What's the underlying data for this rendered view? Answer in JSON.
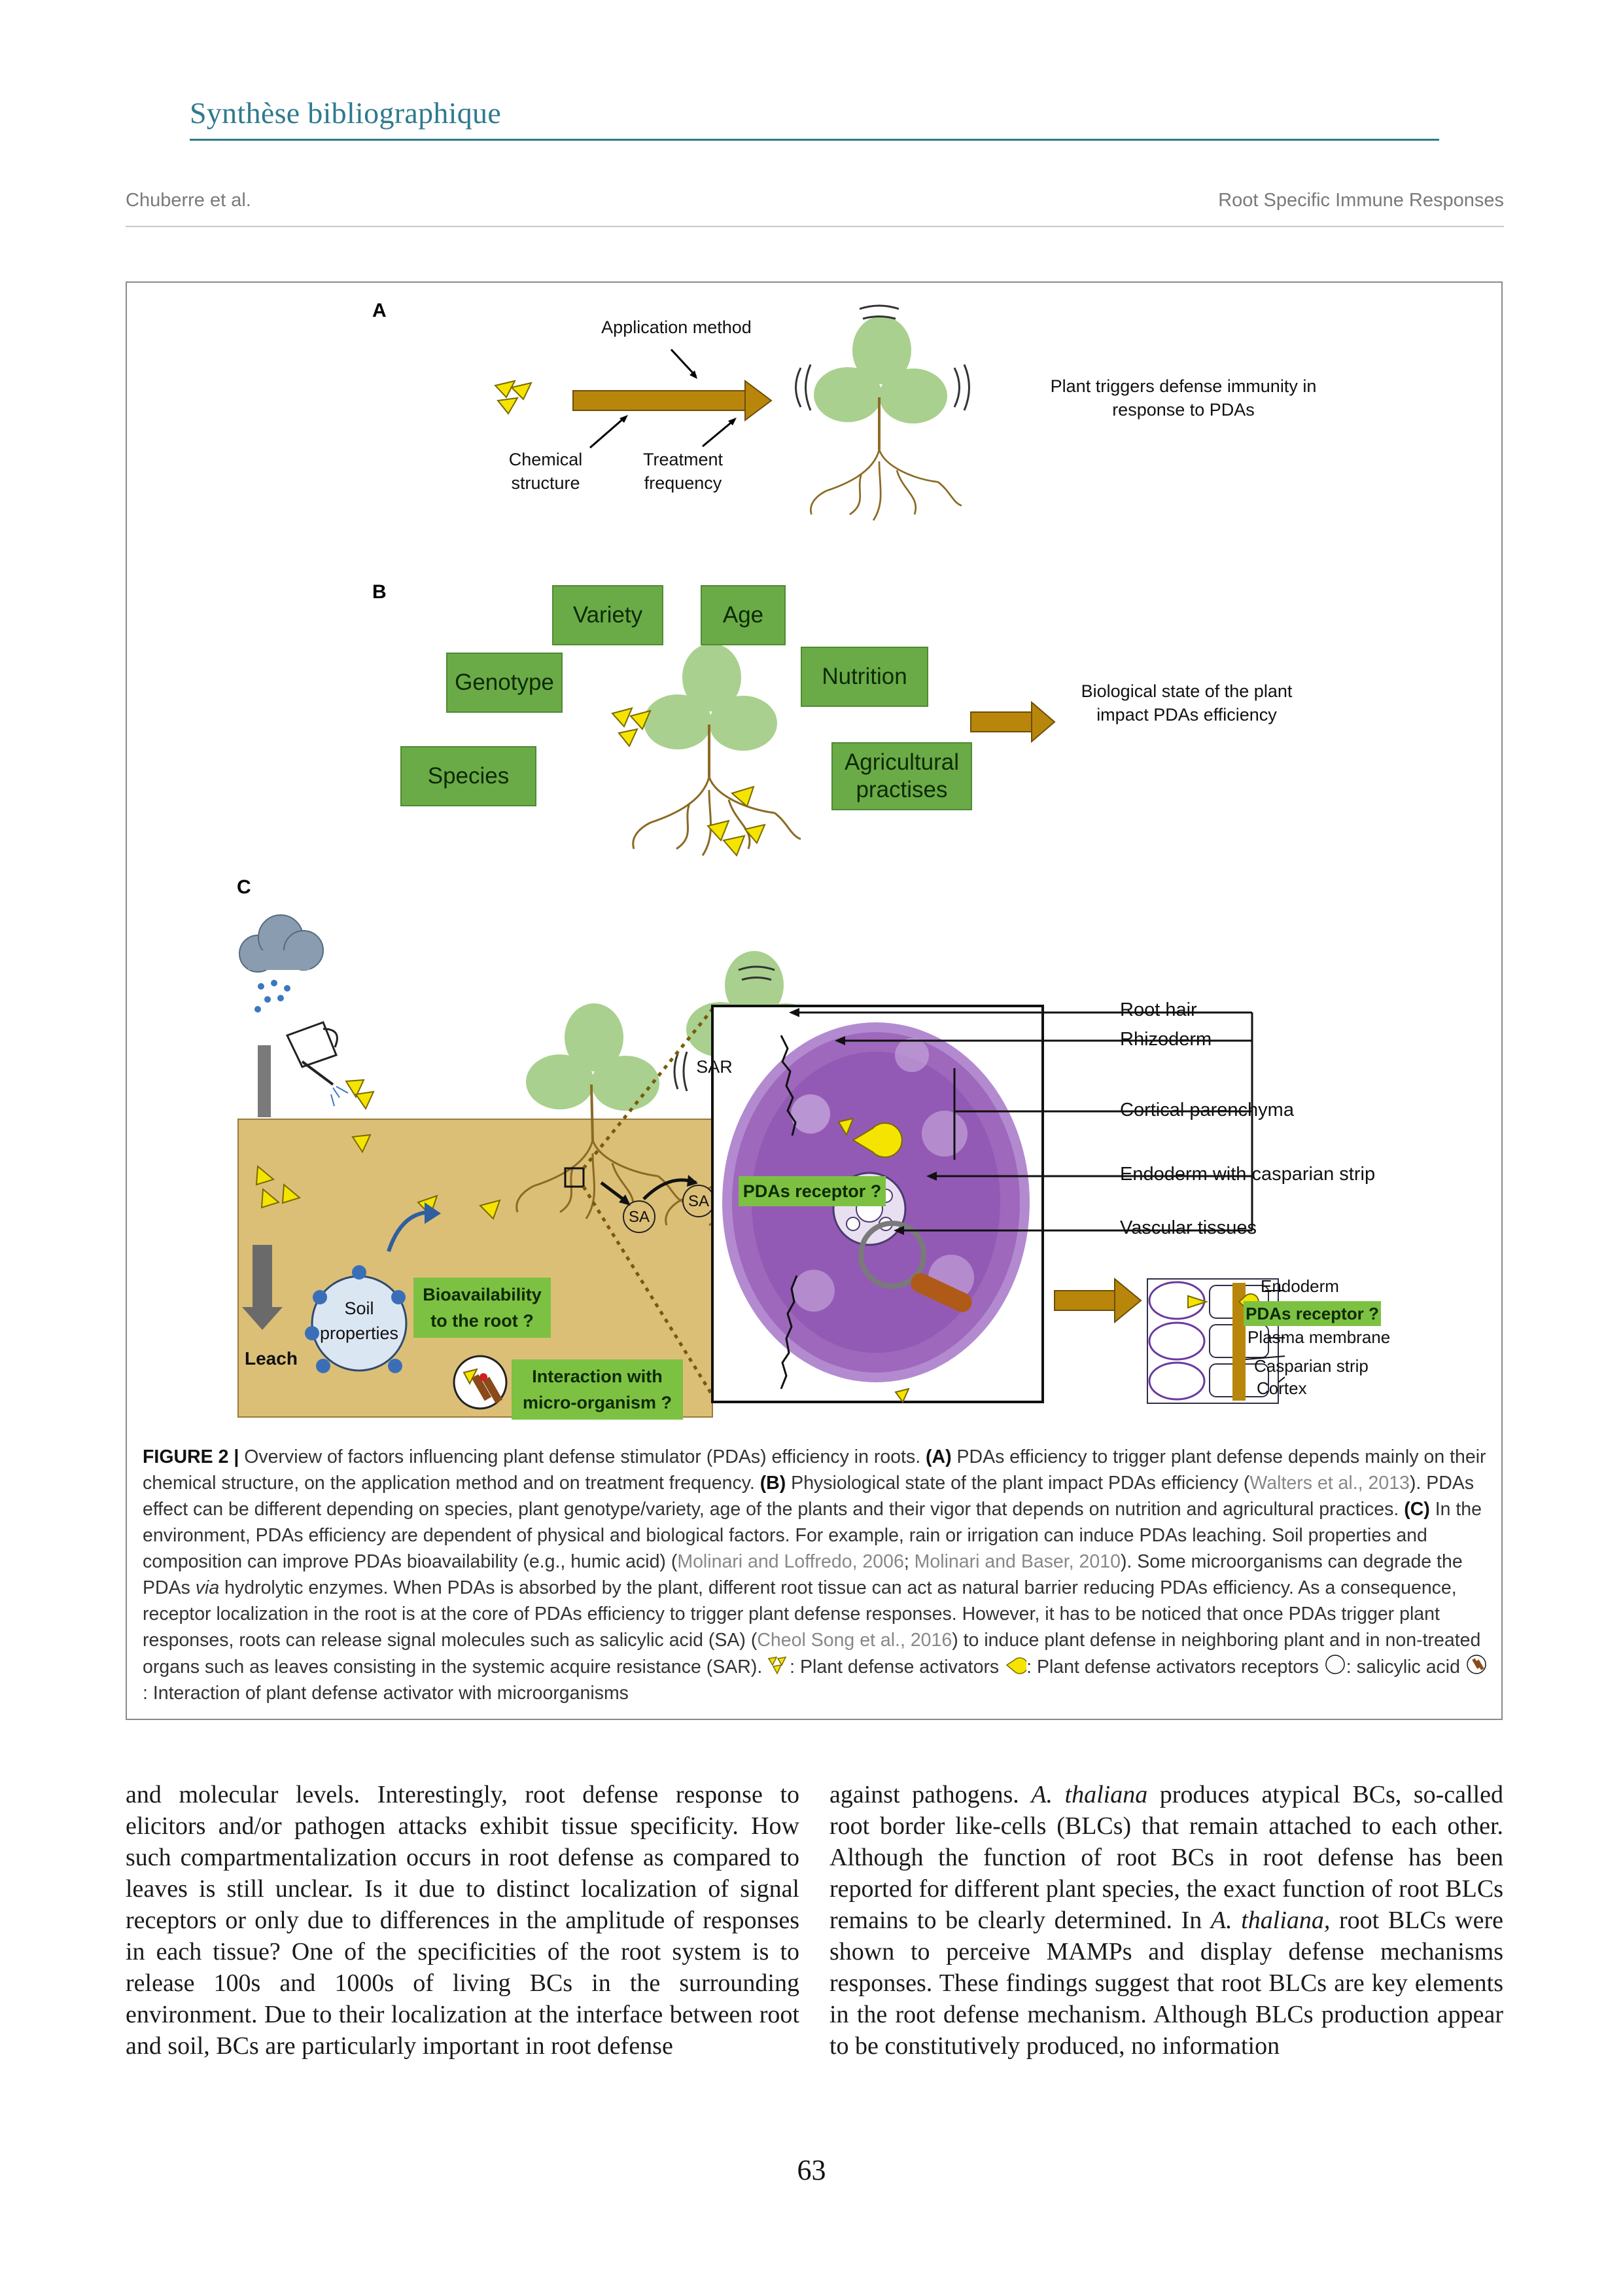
{
  "header": {
    "section_title": "Synthèse bibliographique",
    "authors": "Chuberre et al.",
    "running_title": "Root Specific Immune Responses"
  },
  "figure": {
    "panel_a": {
      "letter": "A",
      "application_method": "Application method",
      "chemical_structure": "Chemical structure",
      "treatment_frequency": "Treatment frequency",
      "plant_triggers": "Plant triggers defense immunity in response to PDAs"
    },
    "panel_b": {
      "letter": "B",
      "variety": "Variety",
      "age": "Age",
      "genotype": "Genotype",
      "nutrition": "Nutrition",
      "species": "Species",
      "agricultural_practises": "Agricultural practises",
      "biological_state": "Biological state of the plant impact PDAs efficiency"
    },
    "panel_c": {
      "letter": "C",
      "sar": "SAR",
      "sa": "SA",
      "soil_properties": "Soil properties",
      "leach": "Leach",
      "bioavailability": "Bioavailability to the root ?",
      "interaction": "Interaction with micro-organism ?",
      "pdas_receptor": "PDAs receptor ?",
      "root_hair": "Root hair",
      "rhizoderm": "Rhizoderm",
      "cortical_parenchyma": "Cortical parenchyma",
      "endoderm_casparian": "Endoderm with casparian strip",
      "vascular_tissues": "Vascular tissues",
      "endoderm": "Endoderm",
      "pdas_receptor_2": "PDAs receptor ?",
      "plasma_membrane": "Plasma membrane",
      "casparian_strip": "Casparian strip",
      "cortex": "Cortex"
    },
    "caption": {
      "label": "FIGURE 2 |",
      "p1": " Overview of factors influencing plant defense stimulator (PDAs) efficiency in roots. ",
      "a": "(A)",
      "p2": " PDAs efficiency to trigger plant defense depends mainly on their chemical structure, on the application method and on treatment frequency. ",
      "b": "(B)",
      "p3": " Physiological state of the plant impact PDAs efficiency (",
      "ref1": "Walters et al., 2013",
      "p4": "). PDAs effect can be different depending on species, plant genotype/variety, age of the plants and their vigor that depends on nutrition and agricultural practices. ",
      "c": "(C)",
      "p5": " In the environment, PDAs efficiency are dependent of physical and biological factors. For example, rain or irrigation can induce PDAs leaching. Soil properties and composition can improve PDAs bioavailability (e.g., humic acid) (",
      "ref2": "Molinari and Loffredo, 2006",
      "p6": "; ",
      "ref3": "Molinari and Baser, 2010",
      "p7": "). Some microorganisms can degrade the PDAs ",
      "via": "via",
      "p8": " hydrolytic enzymes. When PDAs is absorbed by the plant, different root tissue can act as natural barrier reducing PDAs efficiency. As a consequence, receptor localization in the root is at the core of PDAs efficiency to trigger plant defense responses. However, it has to be noticed that once PDAs trigger plant responses, roots can release signal molecules such as salicylic acid (SA) (",
      "ref4": "Cheol Song et al., 2016",
      "p9": ") to induce plant defense in neighboring plant and in non-treated organs such as leaves consisting in the systemic acquire resistance (SAR). ",
      "legend1": ": Plant defense activators ",
      "legend2": ": Plant defense activators receptors ",
      "legend3": ": salicylic acid ",
      "legend4": ": Interaction of plant defense activator with microorganisms"
    }
  },
  "body": {
    "col1": {
      "t1": "and molecular levels. Interestingly, root defense response to elicitors and/or pathogen attacks exhibit tissue specificity. How such compartmentalization occurs in root defense as compared to leaves is still unclear. Is it due to distinct localization of signal receptors or only due to differences in the amplitude of responses in each tissue? One of the specificities of the root system is to release 100s and 1000s of living BCs in the surrounding environment. Due to their localization at the interface between root and soil, BCs are particularly important in root defense"
    },
    "col2": {
      "t1": "against pathogens. ",
      "i1": "A. thaliana",
      "t2": " produces atypical BCs, so-called root border like-cells (BLCs) that remain attached to each other. Although the function of root BCs in root defense has been reported for different plant species, the exact function of root BLCs remains to be clearly determined. In ",
      "i2": "A. thaliana,",
      "t3": " root BLCs were shown to perceive MAMPs and display defense mechanisms responses. These findings suggest that root BLCs are key elements in the root defense mechanism. Although BLCs production appear to be constitutively produced, no information"
    }
  },
  "page_number": "63",
  "colors": {
    "section_teal": "#2e7a8e",
    "green_box": "#6aab47",
    "arrow_brown": "#b8860b",
    "soil": "#dcbf77",
    "leaf": "#a9d08e",
    "root_purple": "#9a62b8",
    "pda_yellow": "#f5e400"
  }
}
